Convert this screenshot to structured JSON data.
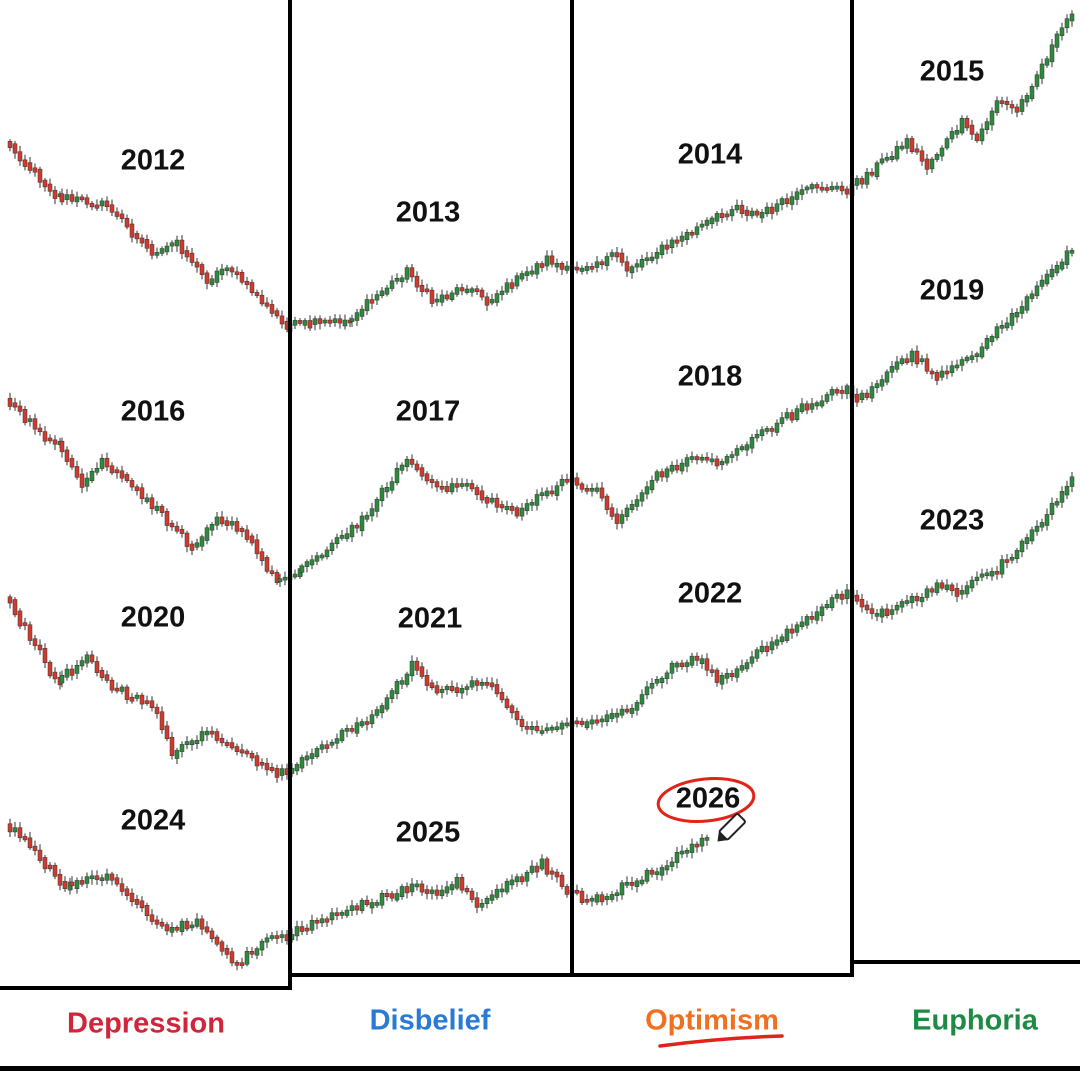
{
  "columns": [
    {
      "phase": "Depression",
      "years": [
        "2012",
        "2016",
        "2020",
        "2024"
      ]
    },
    {
      "phase": "Disbelief",
      "years": [
        "2013",
        "2017",
        "2021",
        "2025"
      ]
    },
    {
      "phase": "Optimism",
      "years": [
        "2014",
        "2018",
        "2022",
        "2026"
      ]
    },
    {
      "phase": "Euphoria",
      "years": [
        "2015",
        "2019",
        "2023"
      ]
    }
  ]
}
